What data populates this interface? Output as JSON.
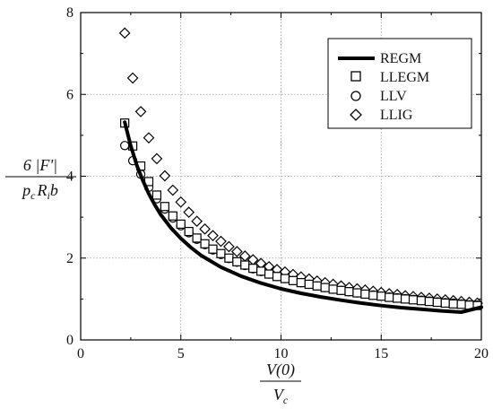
{
  "chart_data": {
    "type": "scatter",
    "xlim": [
      0,
      20
    ],
    "ylim": [
      0,
      8
    ],
    "xticks": [
      "0",
      "5",
      "10",
      "15",
      "20"
    ],
    "yticks": [
      "0",
      "2",
      "4",
      "6",
      "8"
    ],
    "grid": true,
    "legend_position": "top-right",
    "xlabel": {
      "num": "V(0)",
      "den": "V",
      "den_sub": "c"
    },
    "ylabel": {
      "num": "6 |F'|",
      "den": "p",
      "den_sub1": "c",
      "den_mid": "R",
      "den_sub2": "i",
      "den_end": "b"
    },
    "series": [
      {
        "name": "REGM",
        "style": "line",
        "color": "#000000",
        "x": [
          2.2,
          2.5,
          2.8,
          3.1,
          3.4,
          3.7,
          4.0,
          4.5,
          5.0,
          5.5,
          6.0,
          7.0,
          8.0,
          9.0,
          10.0,
          11.0,
          12.0,
          13.0,
          14.0,
          15.0,
          16.0,
          17.0,
          18.0,
          19.0,
          20.0
        ],
        "y": [
          5.32,
          4.74,
          4.27,
          3.9,
          3.57,
          3.3,
          3.06,
          2.74,
          2.48,
          2.26,
          2.07,
          1.78,
          1.56,
          1.39,
          1.25,
          1.14,
          1.05,
          0.97,
          0.9,
          0.84,
          0.79,
          0.75,
          0.71,
          0.68,
          0.8
        ]
      },
      {
        "name": "LLEGM",
        "style": "square",
        "color": "#000000",
        "x": [
          2.2,
          2.6,
          3.0,
          3.4,
          3.8,
          4.2,
          4.6,
          5.0,
          5.4,
          5.8,
          6.2,
          6.6,
          7.0,
          7.4,
          7.8,
          8.2,
          8.6,
          9.0,
          9.4,
          9.8,
          10.2,
          10.6,
          11.0,
          11.4,
          11.8,
          12.2,
          12.6,
          13.0,
          13.4,
          13.8,
          14.2,
          14.6,
          15.0,
          15.4,
          15.8,
          16.2,
          16.6,
          17.0,
          17.4,
          17.8,
          18.2,
          18.6,
          19.0,
          19.4,
          19.8
        ],
        "y": [
          5.3,
          4.74,
          4.25,
          3.87,
          3.54,
          3.26,
          3.03,
          2.83,
          2.65,
          2.49,
          2.35,
          2.22,
          2.11,
          2.0,
          1.91,
          1.83,
          1.75,
          1.68,
          1.61,
          1.55,
          1.5,
          1.45,
          1.4,
          1.36,
          1.32,
          1.28,
          1.24,
          1.21,
          1.18,
          1.15,
          1.12,
          1.09,
          1.07,
          1.04,
          1.02,
          1.0,
          0.98,
          0.96,
          0.94,
          0.92,
          0.9,
          0.88,
          0.87,
          0.85,
          0.84
        ]
      },
      {
        "name": "LLV",
        "style": "circle",
        "color": "#000000",
        "x": [
          2.2,
          2.6,
          3.0,
          3.4,
          3.8,
          4.2,
          4.6,
          5.0,
          5.4,
          5.8,
          6.2,
          6.6,
          7.0,
          7.4,
          7.8,
          8.2,
          8.6,
          9.0,
          9.4,
          9.8,
          10.2,
          10.6,
          11.0,
          11.4,
          11.8,
          12.2,
          12.6,
          13.0,
          13.4,
          13.8,
          14.2,
          14.6,
          15.0,
          15.4,
          15.8,
          16.2,
          16.6,
          17.0,
          17.4,
          17.8,
          18.2,
          18.6,
          19.0,
          19.4,
          19.8
        ],
        "y": [
          4.75,
          4.38,
          4.05,
          3.73,
          3.45,
          3.2,
          2.98,
          2.79,
          2.62,
          2.46,
          2.33,
          2.2,
          2.09,
          1.99,
          1.9,
          1.82,
          1.74,
          1.67,
          1.61,
          1.55,
          1.5,
          1.45,
          1.4,
          1.36,
          1.32,
          1.28,
          1.24,
          1.21,
          1.18,
          1.15,
          1.12,
          1.1,
          1.07,
          1.05,
          1.03,
          1.01,
          0.99,
          0.97,
          0.95,
          0.93,
          0.91,
          0.9,
          0.88,
          0.86,
          0.85
        ]
      },
      {
        "name": "LLIG",
        "style": "diamond",
        "color": "#000000",
        "x": [
          2.2,
          2.6,
          3.0,
          3.4,
          3.8,
          4.2,
          4.6,
          5.0,
          5.4,
          5.8,
          6.2,
          6.6,
          7.0,
          7.4,
          7.8,
          8.2,
          8.6,
          9.0,
          9.4,
          9.8,
          10.2,
          10.6,
          11.0,
          11.4,
          11.8,
          12.2,
          12.6,
          13.0,
          13.4,
          13.8,
          14.2,
          14.6,
          15.0,
          15.4,
          15.8,
          16.2,
          16.6,
          17.0,
          17.4,
          17.8,
          18.2,
          18.6,
          19.0,
          19.4,
          19.8
        ],
        "y": [
          7.5,
          6.4,
          5.58,
          4.94,
          4.43,
          4.01,
          3.66,
          3.37,
          3.12,
          2.9,
          2.71,
          2.55,
          2.41,
          2.28,
          2.16,
          2.05,
          1.96,
          1.87,
          1.79,
          1.72,
          1.66,
          1.6,
          1.54,
          1.49,
          1.44,
          1.4,
          1.36,
          1.32,
          1.28,
          1.25,
          1.22,
          1.19,
          1.16,
          1.13,
          1.11,
          1.08,
          1.06,
          1.04,
          1.02,
          1.0,
          0.98,
          0.96,
          0.94,
          0.92,
          0.9
        ]
      }
    ]
  }
}
